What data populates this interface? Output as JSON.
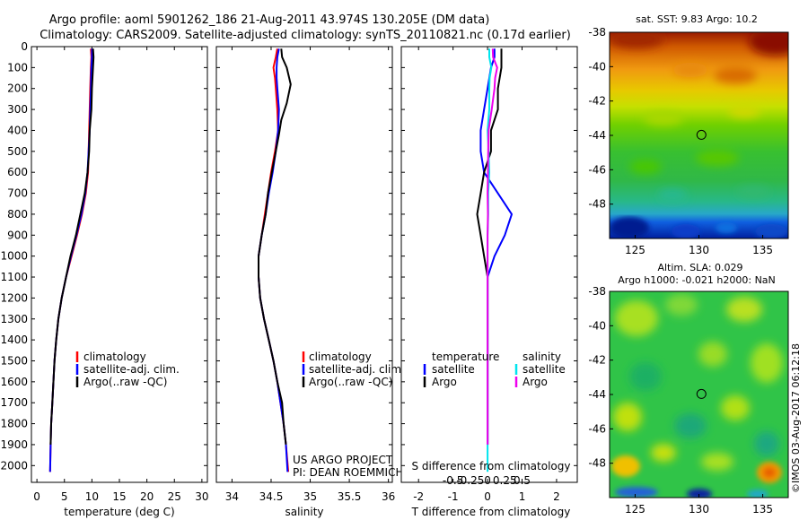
{
  "header": {
    "title_line1": "Argo profile: aoml 5901262_186 21-Aug-2011 43.974S 130.205E (DM data)",
    "title_line2": "Climatology: CARS2009. Satellite-adjusted climatology: synTS_20110821.nc (0.17d earlier)"
  },
  "colors": {
    "climatology": "#ff0000",
    "satellite": "#0000ff",
    "argo": "#000000",
    "salinity_satellite": "#00e5ee",
    "salinity_argo": "#ee00ee"
  },
  "chart_data": [
    {
      "type": "line",
      "panel": "temperature",
      "xlabel": "temperature (deg C)",
      "xlim": [
        -1,
        31
      ],
      "ylim": [
        2080,
        0
      ],
      "y_reversed": true,
      "xticks": [
        0,
        5,
        10,
        15,
        20,
        25,
        30
      ],
      "yticks": [
        0,
        100,
        200,
        300,
        400,
        500,
        600,
        700,
        800,
        900,
        1000,
        1100,
        1200,
        1300,
        1400,
        1500,
        1600,
        1700,
        1800,
        1900,
        2000
      ],
      "legend": {
        "position": "lower-left",
        "entries": [
          "climatology",
          "satellite-adj. clim.",
          "Argo(..raw -QC)"
        ]
      },
      "series": [
        {
          "name": "climatology",
          "color_key": "climatology",
          "points": [
            [
              9.8,
              10
            ],
            [
              9.9,
              50
            ],
            [
              9.8,
              100
            ],
            [
              9.7,
              200
            ],
            [
              9.6,
              300
            ],
            [
              9.5,
              400
            ],
            [
              9.4,
              500
            ],
            [
              9.3,
              600
            ],
            [
              8.9,
              700
            ],
            [
              8.2,
              800
            ],
            [
              7.3,
              900
            ],
            [
              6.3,
              1000
            ],
            [
              5.3,
              1100
            ],
            [
              4.5,
              1200
            ],
            [
              3.9,
              1300
            ],
            [
              3.5,
              1400
            ],
            [
              3.2,
              1500
            ],
            [
              3.0,
              1600
            ],
            [
              2.8,
              1700
            ],
            [
              2.6,
              1800
            ],
            [
              2.5,
              1900
            ],
            [
              2.4,
              2030
            ]
          ]
        },
        {
          "name": "satellite-adj. clim.",
          "color_key": "satellite",
          "points": [
            [
              10.0,
              10
            ],
            [
              10.0,
              50
            ],
            [
              9.9,
              100
            ],
            [
              9.8,
              200
            ],
            [
              9.7,
              300
            ],
            [
              9.6,
              400
            ],
            [
              9.4,
              500
            ],
            [
              9.2,
              600
            ],
            [
              8.8,
              700
            ],
            [
              8.1,
              800
            ],
            [
              7.2,
              900
            ],
            [
              6.2,
              1000
            ],
            [
              5.3,
              1100
            ],
            [
              4.5,
              1200
            ],
            [
              3.9,
              1300
            ],
            [
              3.5,
              1400
            ],
            [
              3.2,
              1500
            ],
            [
              3.0,
              1600
            ],
            [
              2.8,
              1700
            ],
            [
              2.6,
              1800
            ],
            [
              2.5,
              1900
            ],
            [
              2.4,
              2030
            ]
          ]
        },
        {
          "name": "Argo(..raw -QC)",
          "color_key": "argo",
          "points": [
            [
              10.2,
              10
            ],
            [
              10.3,
              50
            ],
            [
              10.2,
              100
            ],
            [
              10.0,
              200
            ],
            [
              9.9,
              300
            ],
            [
              9.6,
              400
            ],
            [
              9.5,
              500
            ],
            [
              9.2,
              600
            ],
            [
              8.7,
              700
            ],
            [
              7.9,
              800
            ],
            [
              7.1,
              900
            ],
            [
              6.1,
              1000
            ],
            [
              5.3,
              1100
            ],
            [
              4.5,
              1200
            ],
            [
              3.9,
              1300
            ],
            [
              3.5,
              1400
            ],
            [
              3.2,
              1500
            ],
            [
              3.0,
              1600
            ],
            [
              2.8,
              1700
            ],
            [
              2.6,
              1800
            ],
            [
              2.5,
              1900
            ]
          ]
        }
      ]
    },
    {
      "type": "line",
      "panel": "salinity",
      "xlabel": "salinity",
      "xlim": [
        33.8,
        36.05
      ],
      "ylim": [
        2080,
        0
      ],
      "y_reversed": true,
      "xticks": [
        34,
        34.5,
        35,
        35.5,
        36
      ],
      "legend": {
        "position": "lower-right",
        "entries": [
          "climatology",
          "satellite-adj. clim.",
          "Argo(..raw -QC)"
        ]
      },
      "annotation": [
        "US ARGO PROJECT",
        "PI: DEAN ROEMMICH"
      ],
      "series": [
        {
          "name": "climatology",
          "color_key": "climatology",
          "points": [
            [
              34.58,
              10
            ],
            [
              34.56,
              50
            ],
            [
              34.53,
              100
            ],
            [
              34.55,
              150
            ],
            [
              34.56,
              200
            ],
            [
              34.58,
              300
            ],
            [
              34.59,
              400
            ],
            [
              34.55,
              500
            ],
            [
              34.5,
              600
            ],
            [
              34.46,
              700
            ],
            [
              34.42,
              800
            ],
            [
              34.38,
              900
            ],
            [
              34.34,
              1000
            ],
            [
              34.34,
              1100
            ],
            [
              34.36,
              1200
            ],
            [
              34.41,
              1300
            ],
            [
              34.47,
              1400
            ],
            [
              34.53,
              1500
            ],
            [
              34.58,
              1600
            ],
            [
              34.62,
              1700
            ],
            [
              34.66,
              1800
            ],
            [
              34.69,
              1900
            ],
            [
              34.72,
              2030
            ]
          ]
        },
        {
          "name": "satellite-adj. clim.",
          "color_key": "satellite",
          "points": [
            [
              34.6,
              10
            ],
            [
              34.58,
              50
            ],
            [
              34.57,
              100
            ],
            [
              34.57,
              150
            ],
            [
              34.58,
              200
            ],
            [
              34.6,
              300
            ],
            [
              34.59,
              400
            ],
            [
              34.56,
              500
            ],
            [
              34.52,
              600
            ],
            [
              34.47,
              700
            ],
            [
              34.43,
              800
            ],
            [
              34.38,
              900
            ],
            [
              34.34,
              1000
            ],
            [
              34.34,
              1100
            ],
            [
              34.36,
              1200
            ],
            [
              34.41,
              1300
            ],
            [
              34.47,
              1400
            ],
            [
              34.53,
              1500
            ],
            [
              34.58,
              1600
            ],
            [
              34.62,
              1700
            ],
            [
              34.66,
              1800
            ],
            [
              34.69,
              1900
            ],
            [
              34.71,
              2030
            ]
          ]
        },
        {
          "name": "Argo(..raw -QC)",
          "color_key": "argo",
          "points": [
            [
              34.63,
              10
            ],
            [
              34.64,
              50
            ],
            [
              34.7,
              100
            ],
            [
              34.75,
              180
            ],
            [
              34.7,
              270
            ],
            [
              34.63,
              350
            ],
            [
              34.6,
              420
            ],
            [
              34.56,
              500
            ],
            [
              34.51,
              600
            ],
            [
              34.46,
              700
            ],
            [
              34.43,
              800
            ],
            [
              34.38,
              900
            ],
            [
              34.34,
              1000
            ],
            [
              34.34,
              1100
            ],
            [
              34.36,
              1200
            ],
            [
              34.41,
              1300
            ],
            [
              34.47,
              1400
            ],
            [
              34.53,
              1500
            ],
            [
              34.58,
              1600
            ],
            [
              34.64,
              1700
            ],
            [
              34.66,
              1800
            ],
            [
              34.69,
              1900
            ]
          ]
        }
      ]
    },
    {
      "type": "line",
      "panel": "differences",
      "xlabel": "T difference from climatology",
      "xlabel_top": "S difference from climatology",
      "xlim": [
        -2.5,
        2.6
      ],
      "xticks": [
        -2,
        -1,
        0,
        1,
        2
      ],
      "xticks_S": [
        -0.5,
        -0.25,
        0,
        0.25,
        0.5
      ],
      "ylim": [
        2080,
        0
      ],
      "y_reversed": true,
      "legend_temperature": {
        "title": "temperature",
        "entries": [
          "satellite",
          "Argo"
        ]
      },
      "legend_salinity": {
        "title": "salinity",
        "entries": [
          "satellite",
          "Argo"
        ]
      },
      "series": [
        {
          "name": "temperature satellite",
          "color_key": "satellite",
          "points": [
            [
              0.2,
              10
            ],
            [
              0.2,
              50
            ],
            [
              0.1,
              100
            ],
            [
              0.0,
              200
            ],
            [
              -0.1,
              300
            ],
            [
              -0.2,
              400
            ],
            [
              -0.2,
              500
            ],
            [
              -0.1,
              600
            ],
            [
              0.3,
              700
            ],
            [
              0.7,
              800
            ],
            [
              0.5,
              900
            ],
            [
              0.2,
              1000
            ],
            [
              0.0,
              1100
            ],
            [
              0.0,
              1200
            ],
            [
              0.0,
              1400
            ],
            [
              0.0,
              1600
            ],
            [
              0.0,
              1800
            ],
            [
              0.0,
              1900
            ]
          ]
        },
        {
          "name": "temperature Argo",
          "color_key": "argo",
          "points": [
            [
              0.4,
              10
            ],
            [
              0.4,
              50
            ],
            [
              0.4,
              100
            ],
            [
              0.3,
              200
            ],
            [
              0.3,
              300
            ],
            [
              0.1,
              400
            ],
            [
              0.1,
              500
            ],
            [
              -0.1,
              600
            ],
            [
              -0.2,
              700
            ],
            [
              -0.3,
              800
            ],
            [
              -0.2,
              900
            ],
            [
              -0.1,
              1000
            ],
            [
              0.0,
              1100
            ],
            [
              0.0,
              1300
            ],
            [
              0.0,
              1500
            ],
            [
              0.0,
              1700
            ],
            [
              0.0,
              1900
            ]
          ]
        },
        {
          "name": "salinity satellite",
          "color_key": "salinity_satellite",
          "points": [
            [
              0.05,
              10
            ],
            [
              0.05,
              50
            ],
            [
              0.11,
              100
            ],
            [
              0.06,
              150
            ],
            [
              0.05,
              200
            ],
            [
              0.05,
              300
            ],
            [
              0.0,
              400
            ],
            [
              0.03,
              500
            ],
            [
              0.05,
              600
            ],
            [
              0.02,
              700
            ],
            [
              0.02,
              800
            ],
            [
              0.0,
              900
            ],
            [
              0.0,
              1000
            ],
            [
              0.0,
              1200
            ],
            [
              0.0,
              1400
            ],
            [
              0.0,
              1600
            ],
            [
              0.0,
              1800
            ],
            [
              0.0,
              2030
            ]
          ]
        },
        {
          "name": "salinity Argo",
          "color_key": "salinity_argo",
          "points": [
            [
              0.15,
              10
            ],
            [
              0.16,
              50
            ],
            [
              0.28,
              100
            ],
            [
              0.22,
              150
            ],
            [
              0.2,
              200
            ],
            [
              0.12,
              300
            ],
            [
              0.03,
              400
            ],
            [
              0.02,
              500
            ],
            [
              0.01,
              600
            ],
            [
              0.0,
              700
            ],
            [
              0.01,
              800
            ],
            [
              0.0,
              900
            ],
            [
              0.0,
              1000
            ],
            [
              0.0,
              1200
            ],
            [
              0.0,
              1400
            ],
            [
              0.0,
              1600
            ],
            [
              0.0,
              1800
            ],
            [
              0.0,
              1900
            ]
          ]
        }
      ]
    },
    {
      "type": "heatmap",
      "panel": "sst_map",
      "title": "sat. SST: 9.83  Argo: 10.2",
      "xlim": [
        123,
        137
      ],
      "ylim": [
        -50,
        -38
      ],
      "xticks": [
        125,
        130,
        135
      ],
      "yticks": [
        -38,
        -40,
        -42,
        -44,
        -46,
        -48
      ],
      "marker": [
        130.2,
        -43.97
      ]
    },
    {
      "type": "heatmap",
      "panel": "sla_map",
      "title_line1": "Altim. SLA: 0.029",
      "title_line2": "Argo h1000: -0.021 h2000: NaN",
      "xlim": [
        123,
        137
      ],
      "ylim": [
        -50,
        -38
      ],
      "xticks": [
        125,
        130,
        135
      ],
      "yticks": [
        -38,
        -40,
        -42,
        -44,
        -46,
        -48
      ],
      "marker": [
        130.2,
        -43.97
      ]
    }
  ],
  "footer": {
    "watermark": "©IMOS 03-Aug-2017 06:12:18"
  }
}
